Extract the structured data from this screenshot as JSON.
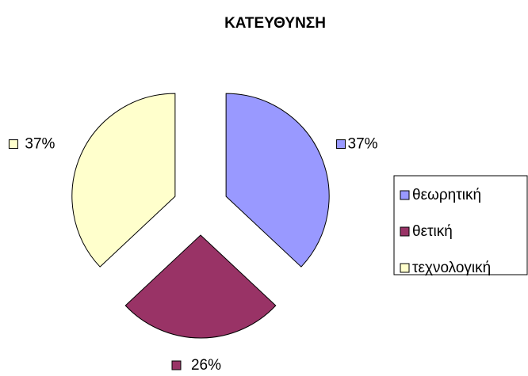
{
  "chart_data": {
    "type": "pie",
    "title": "ΚΑΤΕΥΘΥΝΣΗ",
    "categories": [
      "θεωρητική",
      "θετική",
      "τεχνολογική"
    ],
    "values": [
      37,
      26,
      37
    ],
    "value_labels": [
      "37%",
      "26%",
      "37%"
    ],
    "colors": [
      "#9999ff",
      "#993366",
      "#ffffcc"
    ],
    "exploded": true,
    "legend": "right"
  }
}
